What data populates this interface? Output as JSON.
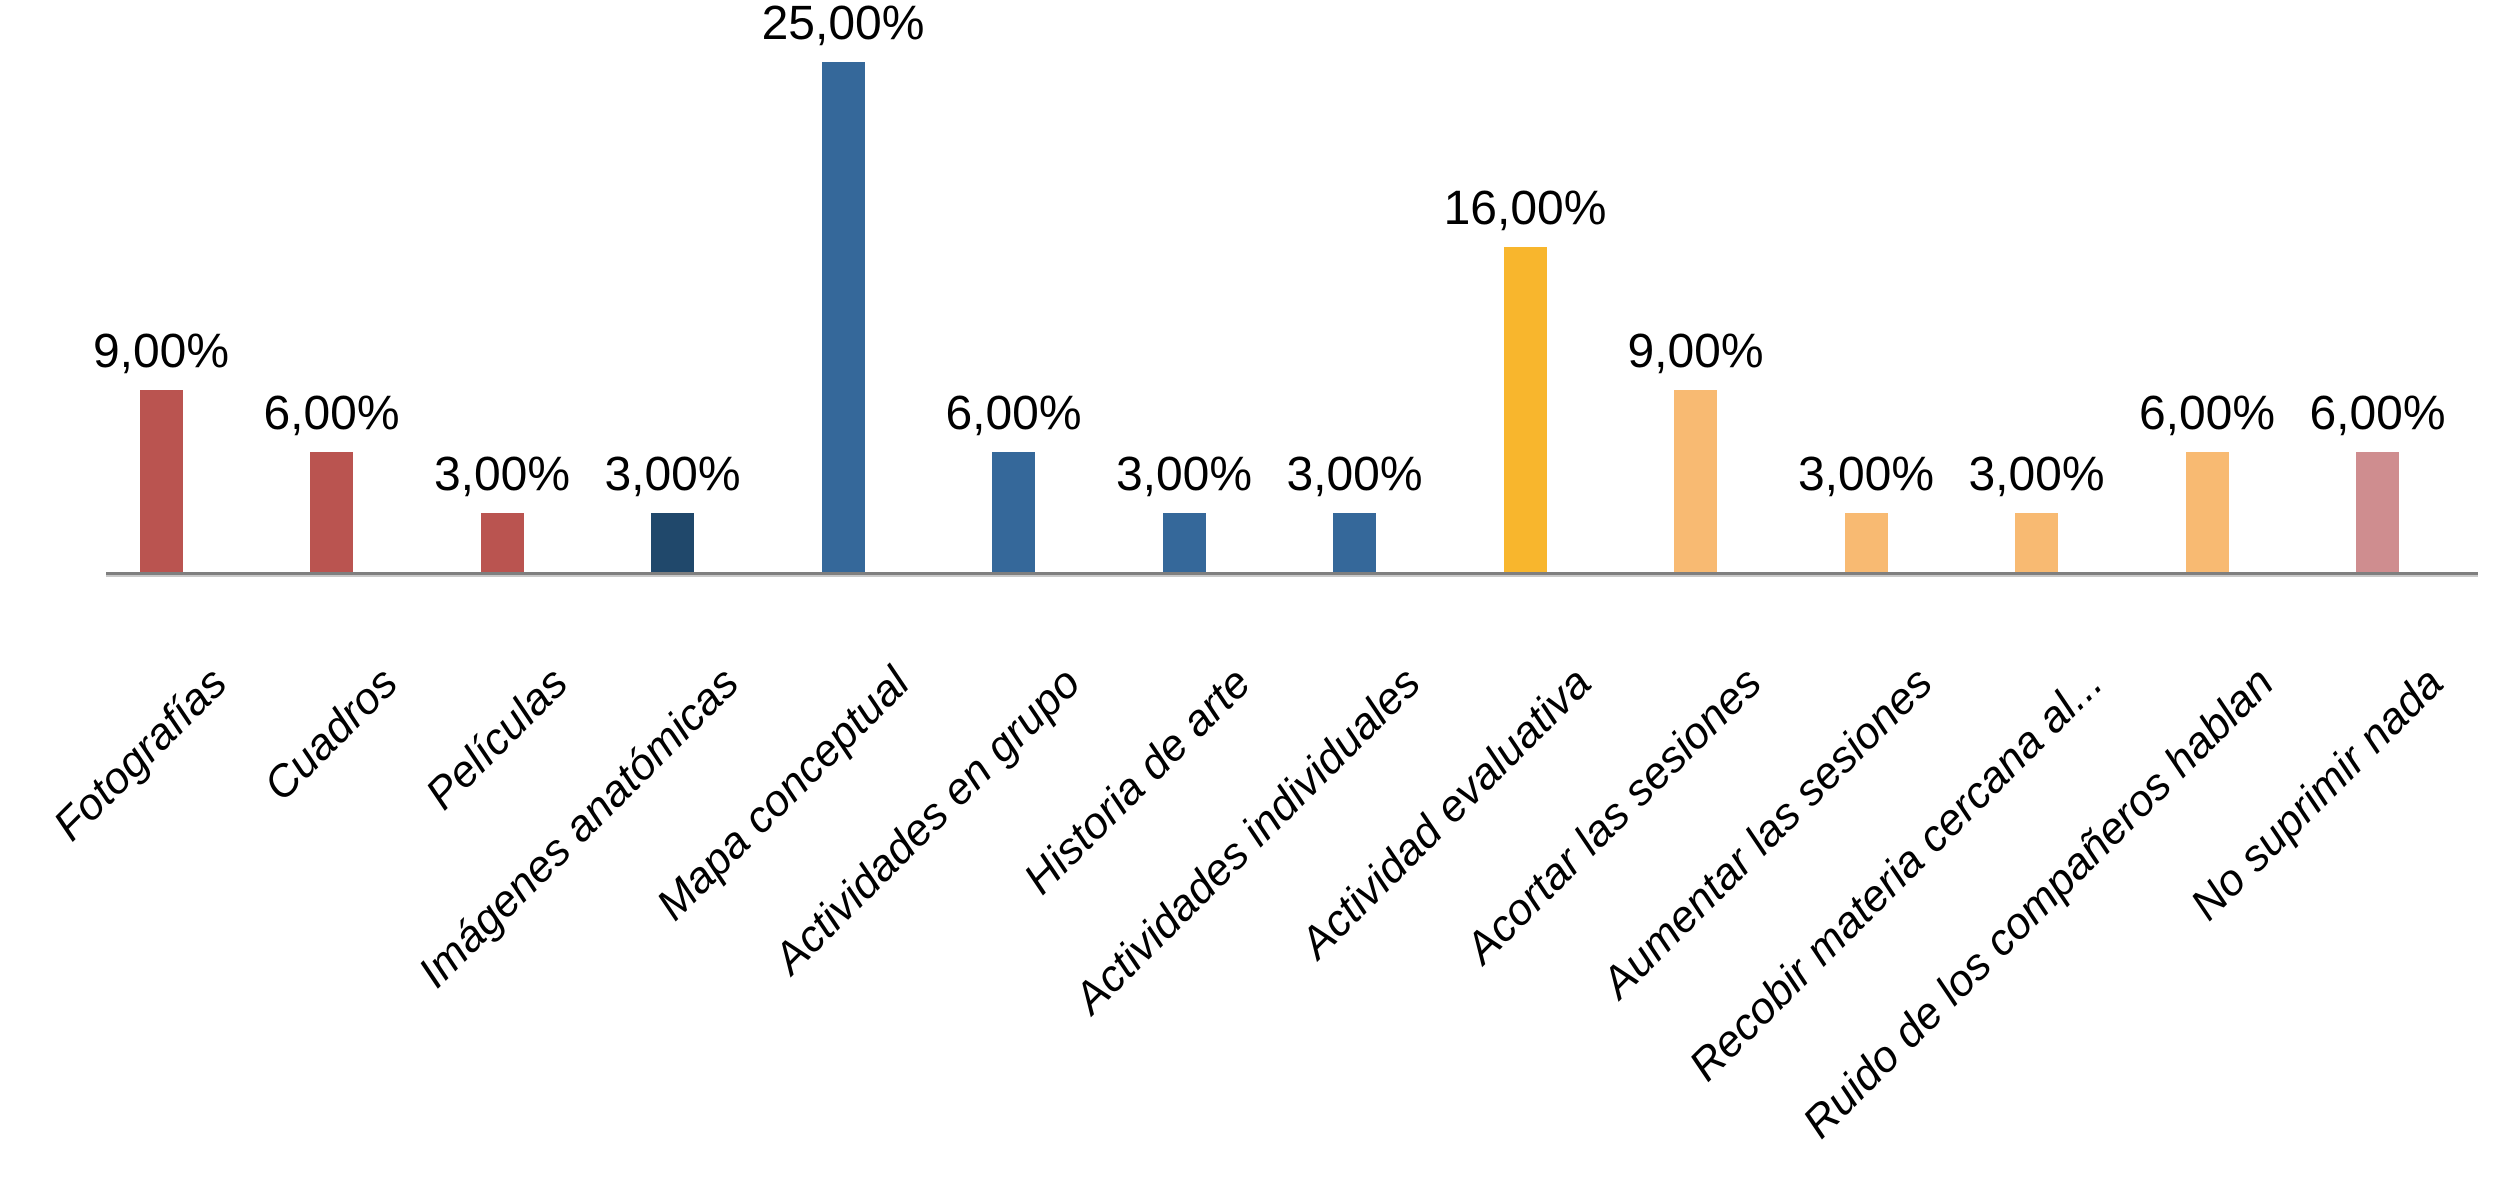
{
  "chart_data": {
    "type": "bar",
    "title": "",
    "xlabel": "",
    "ylabel": "",
    "categories": [
      "Fotografías",
      "Cuadros",
      "Películas",
      "Imágenes anatómicas",
      "Mapa conceptual",
      "Actividades en grupo",
      "Historia de arte",
      "Actividades individuales",
      "Actividad evaluativa",
      "Acortar las sesiones",
      "Aumentar las sesiones",
      "Recobir materia cercana al...",
      "Ruido de los compañeros hablan",
      "No suprimir nada"
    ],
    "values": [
      9,
      6,
      3,
      3,
      25,
      6,
      3,
      3,
      16,
      9,
      3,
      3,
      6,
      6
    ],
    "value_labels": [
      "9,00%",
      "6,00%",
      "3,00%",
      "3,00%",
      "25,00%",
      "6,00%",
      "3,00%",
      "3,00%",
      "16,00%",
      "9,00%",
      "3,00%",
      "3,00%",
      "6,00%",
      "6,00%"
    ],
    "colors": [
      "#ba5450",
      "#ba5450",
      "#ba5450",
      "#20486b",
      "#35689a",
      "#35689a",
      "#35689a",
      "#35689a",
      "#f8b62d",
      "#f8ba72",
      "#f8ba72",
      "#f8ba72",
      "#f8ba72",
      "#cf8d8f"
    ],
    "ylim": [
      0,
      27
    ],
    "grid": false,
    "legend": false,
    "y_axis_visible": false,
    "label_rotation_deg": -45,
    "axis_line_color": "#7f7f7f",
    "axis_line_light_color": "#c9c9c9",
    "background": "#ffffff"
  }
}
